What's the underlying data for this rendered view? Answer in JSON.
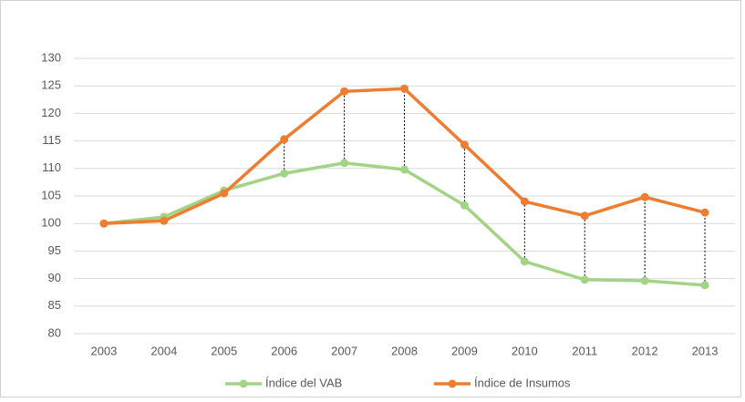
{
  "chart_data": {
    "type": "line",
    "categories": [
      "2003",
      "2004",
      "2005",
      "2006",
      "2007",
      "2008",
      "2009",
      "2010",
      "2011",
      "2012",
      "2013"
    ],
    "series": [
      {
        "name": "Índice del VAB",
        "color": "#a3d486",
        "values": [
          100,
          101.2,
          106,
          109.1,
          111,
          109.8,
          103.3,
          93.1,
          89.8,
          89.6,
          88.8
        ]
      },
      {
        "name": "Índice de Insumos",
        "color": "#ed7d31",
        "values": [
          100,
          100.5,
          105.5,
          115.3,
          124,
          124.5,
          114.3,
          104,
          101.4,
          104.8,
          102
        ]
      }
    ],
    "ylim": [
      80,
      130
    ],
    "yticks": [
      80,
      85,
      90,
      95,
      100,
      105,
      110,
      115,
      120,
      125,
      130
    ],
    "grid": true,
    "drop_lines": true,
    "legend": "bottom"
  }
}
